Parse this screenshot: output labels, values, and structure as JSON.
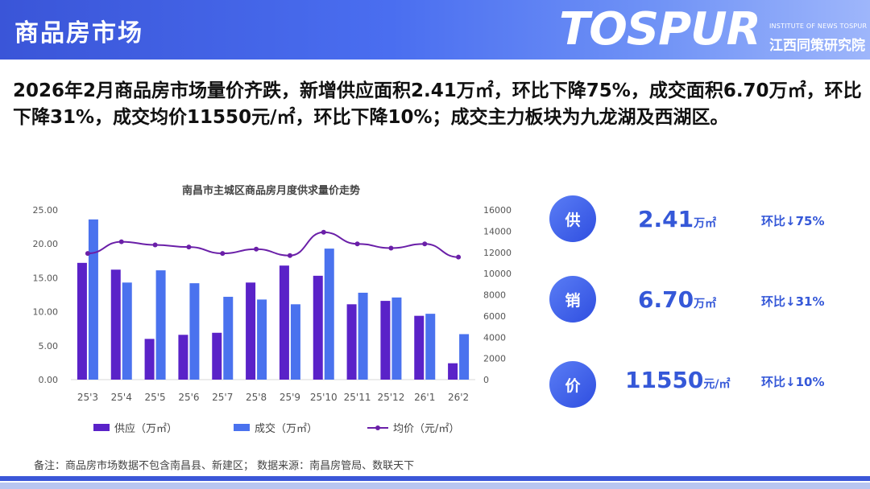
{
  "header": {
    "title": "商品房市场"
  },
  "logo": {
    "main": "TOSPUR",
    "sub_en": "INSTITUTE OF NEWS TOSPUR",
    "sub_cn": "江西同策研究院"
  },
  "headline": "2026年2月商品房市场量价齐跌，新增供应面积2.41万㎡，环比下降75%，成交面积6.70万㎡，环比下降31%，成交均价11550元/㎡，环比下降10%；成交主力板块为九龙湖及西湖区。",
  "chart_data": {
    "type": "bar",
    "title": "南昌市主城区商品房月度供求量价走势",
    "categories": [
      "25'3",
      "25'4",
      "25'5",
      "25'6",
      "25'7",
      "25'8",
      "25'9",
      "25'10",
      "25'11",
      "25'12",
      "26'1",
      "26'2"
    ],
    "series": [
      {
        "name": "供应（万㎡）",
        "type": "bar",
        "axis": "left",
        "color": "#5a22c8",
        "values": [
          17.2,
          16.2,
          6.0,
          6.6,
          6.9,
          14.3,
          16.8,
          15.3,
          11.1,
          11.6,
          9.4,
          2.41
        ]
      },
      {
        "name": "成交（万㎡）",
        "type": "bar",
        "axis": "left",
        "color": "#4a72ee",
        "values": [
          23.6,
          14.3,
          16.1,
          14.2,
          12.2,
          11.8,
          11.1,
          19.3,
          12.8,
          12.1,
          9.7,
          6.7
        ]
      },
      {
        "name": "均价（元/㎡）",
        "type": "line",
        "axis": "right",
        "color": "#6a1fa8",
        "values": [
          11900,
          13000,
          12700,
          12500,
          11900,
          12300,
          11700,
          13900,
          12800,
          12400,
          12800,
          11550
        ]
      }
    ],
    "y_left": {
      "ticks": [
        "25.00",
        "20.00",
        "15.00",
        "10.00",
        "5.00",
        "0.00"
      ],
      "range": [
        0,
        25
      ]
    },
    "y_right": {
      "ticks": [
        "16000",
        "14000",
        "12000",
        "10000",
        "8000",
        "6000",
        "4000",
        "2000",
        "0"
      ],
      "range": [
        0,
        16000
      ]
    },
    "grid": false
  },
  "kpis": [
    {
      "label": "供",
      "value": "2.41",
      "unit": "万㎡",
      "change": "环比↓75%"
    },
    {
      "label": "销",
      "value": "6.70",
      "unit": "万㎡",
      "change": "环比↓31%"
    },
    {
      "label": "价",
      "value": "11550",
      "unit": "元/㎡",
      "change": "环比↓10%"
    }
  ],
  "note": "备注：商品房市场数据不包含南昌县、新建区；   数据来源：南昌房管局、数联天下",
  "colors": {
    "accent": "#3b57d8",
    "supply": "#5a22c8",
    "deal": "#4a72ee",
    "price": "#6a1fa8"
  }
}
